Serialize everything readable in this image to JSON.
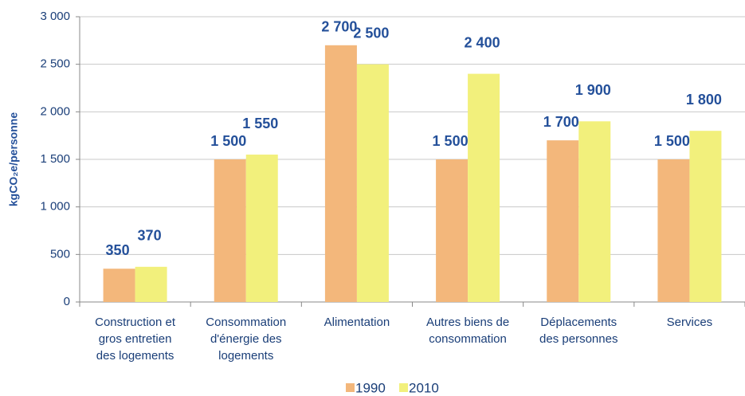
{
  "chart_data": {
    "type": "bar",
    "y_label": "kgCO₂e/personne",
    "categories": [
      [
        "Construction et",
        "gros entretien",
        "des logements"
      ],
      [
        "Consommation",
        "d'énergie des",
        "logements"
      ],
      [
        "Alimentation"
      ],
      [
        "Autres biens de",
        "consommation"
      ],
      [
        "Déplacements",
        "des personnes"
      ],
      [
        "Services"
      ]
    ],
    "series": [
      {
        "name": "1990",
        "color": "#f3b77b",
        "values": [
          350,
          1500,
          2700,
          1500,
          1700,
          1500
        ],
        "value_labels": [
          "350",
          "1 500",
          "2 700",
          "1 500",
          "1 700",
          "1 500"
        ]
      },
      {
        "name": "2010",
        "color": "#f2f07c",
        "values": [
          370,
          1550,
          2500,
          2400,
          1900,
          1800
        ],
        "value_labels": [
          "370",
          "1 550",
          "2 500",
          "2 400",
          "1 900",
          "1 800"
        ]
      }
    ],
    "ylim": [
      0,
      3000
    ],
    "yticks": [
      0,
      500,
      {
        "value": 1000,
        "label": "1 000"
      },
      {
        "value": 1500,
        "label": "1 500"
      },
      {
        "value": 2000,
        "label": "2 000"
      },
      {
        "value": 2500,
        "label": "2 500"
      },
      {
        "value": 3000,
        "label": "3 000"
      }
    ],
    "grid": true
  }
}
